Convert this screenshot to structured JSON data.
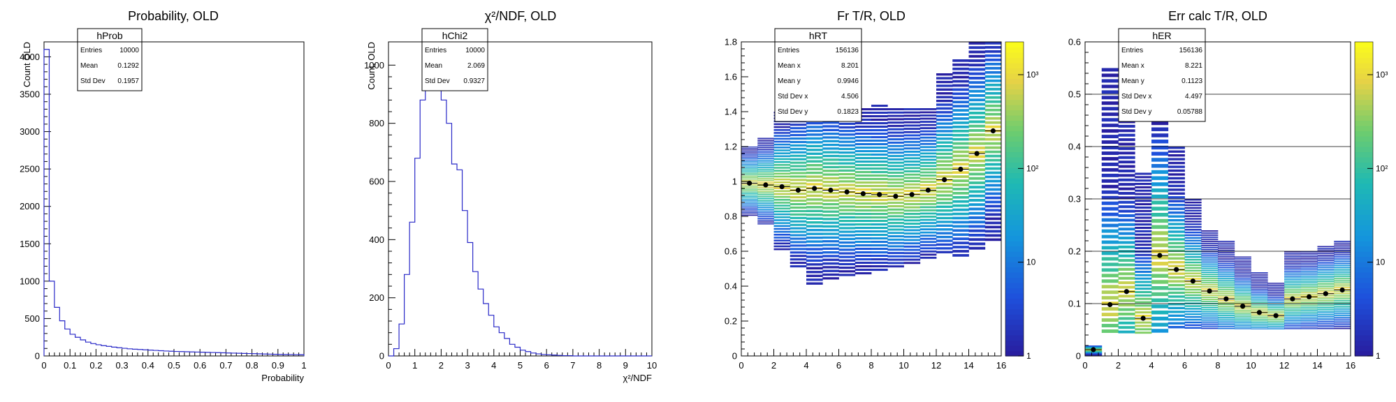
{
  "colors": {
    "hist_line": "#2828c8",
    "axis": "#000000",
    "marker": "#000000"
  },
  "chart_data": [
    {
      "type": "histogram",
      "title": "Probability, OLD",
      "xlabel": "Probability",
      "ylabel": "Count OLD",
      "xlim": [
        0,
        1
      ],
      "ylim": [
        0,
        4200
      ],
      "xticks": [
        "0",
        "0.1",
        "0.2",
        "0.3",
        "0.4",
        "0.5",
        "0.6",
        "0.7",
        "0.8",
        "0.9",
        "1"
      ],
      "yticks": [
        "0",
        "500",
        "1000",
        "1500",
        "2000",
        "2500",
        "3000",
        "3500",
        "4000"
      ],
      "bin_width": 0.02,
      "values": [
        4100,
        1000,
        650,
        470,
        360,
        290,
        250,
        215,
        185,
        165,
        150,
        138,
        128,
        118,
        110,
        102,
        95,
        90,
        86,
        82,
        78,
        74,
        70,
        66,
        63,
        60,
        58,
        56,
        54,
        52,
        50,
        48,
        46,
        44,
        42,
        40,
        38,
        36,
        34,
        32,
        30,
        28,
        26,
        24,
        22,
        20,
        19,
        18,
        17,
        16
      ],
      "stats": {
        "name": "hProb",
        "rows": [
          {
            "label": "Entries",
            "value": "10000"
          },
          {
            "label": "Mean",
            "value": "0.1292"
          },
          {
            "label": "Std Dev",
            "value": "0.1957"
          }
        ]
      }
    },
    {
      "type": "histogram",
      "title": "χ²/NDF, OLD",
      "xlabel": "χ²/NDF",
      "ylabel": "Count, OLD",
      "xlim": [
        0,
        10
      ],
      "ylim": [
        0,
        1080
      ],
      "xticks": [
        "0",
        "1",
        "2",
        "3",
        "4",
        "5",
        "6",
        "7",
        "8",
        "9",
        "10"
      ],
      "yticks": [
        "0",
        "200",
        "400",
        "600",
        "800",
        "1000"
      ],
      "bin_width": 0.2,
      "values": [
        0,
        25,
        110,
        280,
        460,
        680,
        880,
        950,
        1060,
        1010,
        880,
        800,
        660,
        640,
        500,
        390,
        290,
        230,
        180,
        140,
        100,
        80,
        60,
        40,
        30,
        20,
        15,
        10,
        7,
        5,
        4,
        3,
        2,
        1,
        1,
        0,
        0,
        0,
        0,
        0,
        0,
        0,
        0,
        0,
        0,
        0,
        0,
        0,
        0,
        0
      ],
      "stats": {
        "name": "hChi2",
        "rows": [
          {
            "label": "Entries",
            "value": "10000"
          },
          {
            "label": "Mean",
            "value": "2.069"
          },
          {
            "label": "Std Dev",
            "value": "0.9327"
          }
        ]
      }
    },
    {
      "type": "heatmap",
      "title": "Fr  T/R, OLD",
      "xlim": [
        0,
        16
      ],
      "ylim": [
        0,
        1.8
      ],
      "xticks": [
        "0",
        "2",
        "4",
        "6",
        "8",
        "10",
        "12",
        "14",
        "16"
      ],
      "yticks": [
        "0",
        "0.2",
        "0.4",
        "0.6",
        "0.8",
        "1",
        "1.2",
        "1.4",
        "1.6",
        "1.8"
      ],
      "z_scale": "log",
      "z_ticks": [
        "1",
        "10",
        "10²",
        "10³"
      ],
      "profile": {
        "x": [
          0.5,
          1.5,
          2.5,
          3.5,
          4.5,
          5.5,
          6.5,
          7.5,
          8.5,
          9.5,
          10.5,
          11.5,
          12.5,
          13.5,
          14.5,
          15.5
        ],
        "y": [
          0.99,
          0.98,
          0.97,
          0.95,
          0.96,
          0.95,
          0.94,
          0.93,
          0.925,
          0.915,
          0.925,
          0.95,
          1.01,
          1.07,
          1.16,
          1.29
        ]
      },
      "columns": [
        {
          "x0": 0,
          "x1": 1,
          "y0": 0.8,
          "y1": 1.2,
          "peak": 400
        },
        {
          "x0": 1,
          "x1": 2,
          "y0": 0.75,
          "y1": 1.25,
          "peak": 350
        },
        {
          "x0": 2,
          "x1": 3,
          "y0": 0.6,
          "y1": 1.4,
          "peak": 300
        },
        {
          "x0": 3,
          "x1": 4,
          "y0": 0.5,
          "y1": 1.45,
          "peak": 280
        },
        {
          "x0": 4,
          "x1": 5,
          "y0": 0.4,
          "y1": 1.45,
          "peak": 260
        },
        {
          "x0": 5,
          "x1": 6,
          "y0": 0.43,
          "y1": 1.45,
          "peak": 260
        },
        {
          "x0": 6,
          "x1": 7,
          "y0": 0.45,
          "y1": 1.44,
          "peak": 250
        },
        {
          "x0": 7,
          "x1": 8,
          "y0": 0.46,
          "y1": 1.42,
          "peak": 240
        },
        {
          "x0": 8,
          "x1": 9,
          "y0": 0.48,
          "y1": 1.44,
          "peak": 230
        },
        {
          "x0": 9,
          "x1": 10,
          "y0": 0.5,
          "y1": 1.42,
          "peak": 220
        },
        {
          "x0": 10,
          "x1": 11,
          "y0": 0.52,
          "y1": 1.42,
          "peak": 220
        },
        {
          "x0": 11,
          "x1": 12,
          "y0": 0.55,
          "y1": 1.42,
          "peak": 220
        },
        {
          "x0": 12,
          "x1": 13,
          "y0": 0.58,
          "y1": 1.62,
          "peak": 200
        },
        {
          "x0": 13,
          "x1": 14,
          "y0": 0.56,
          "y1": 1.7,
          "peak": 180
        },
        {
          "x0": 14,
          "x1": 15,
          "y0": 0.6,
          "y1": 1.8,
          "peak": 170
        },
        {
          "x0": 15,
          "x1": 16,
          "y0": 0.65,
          "y1": 1.8,
          "peak": 160
        }
      ],
      "stats": {
        "name": "hRT",
        "rows": [
          {
            "label": "Entries",
            "value": "156136"
          },
          {
            "label": "Mean x",
            "value": "8.201"
          },
          {
            "label": "Mean y",
            "value": "0.9946"
          },
          {
            "label": "Std Dev x",
            "value": "4.506"
          },
          {
            "label": "Std Dev y",
            "value": "0.1823"
          }
        ]
      }
    },
    {
      "type": "heatmap",
      "title": "Err calc  T/R, OLD",
      "xlim": [
        0,
        16
      ],
      "ylim": [
        0,
        0.6
      ],
      "xticks": [
        "0",
        "2",
        "4",
        "6",
        "8",
        "10",
        "12",
        "14",
        "16"
      ],
      "yticks": [
        "0",
        "0.1",
        "0.2",
        "0.3",
        "0.4",
        "0.5",
        "0.6"
      ],
      "z_scale": "log",
      "z_ticks": [
        "1",
        "10",
        "10²",
        "10³"
      ],
      "profile": {
        "x": [
          0.5,
          1.5,
          2.5,
          3.5,
          4.5,
          5.5,
          6.5,
          7.5,
          8.5,
          9.5,
          10.5,
          11.5,
          12.5,
          13.5,
          14.5,
          15.5
        ],
        "y": [
          0.012,
          0.098,
          0.123,
          0.072,
          0.192,
          0.165,
          0.143,
          0.124,
          0.109,
          0.095,
          0.083,
          0.077,
          0.109,
          0.113,
          0.119,
          0.126
        ]
      },
      "columns": [
        {
          "x0": 0,
          "x1": 1,
          "y0": 0.0,
          "y1": 0.02,
          "peak": 30
        },
        {
          "x0": 1,
          "x1": 2,
          "y0": 0.04,
          "y1": 0.55,
          "peak": 200
        },
        {
          "x0": 2,
          "x1": 3,
          "y0": 0.04,
          "y1": 0.45,
          "peak": 250
        },
        {
          "x0": 3,
          "x1": 4,
          "y0": 0.04,
          "y1": 0.35,
          "peak": 300
        },
        {
          "x0": 4,
          "x1": 5,
          "y0": 0.04,
          "y1": 0.6,
          "peak": 260
        },
        {
          "x0": 5,
          "x1": 6,
          "y0": 0.05,
          "y1": 0.4,
          "peak": 260
        },
        {
          "x0": 6,
          "x1": 7,
          "y0": 0.05,
          "y1": 0.3,
          "peak": 280
        },
        {
          "x0": 7,
          "x1": 8,
          "y0": 0.05,
          "y1": 0.24,
          "peak": 300
        },
        {
          "x0": 8,
          "x1": 9,
          "y0": 0.05,
          "y1": 0.22,
          "peak": 320
        },
        {
          "x0": 9,
          "x1": 10,
          "y0": 0.05,
          "y1": 0.19,
          "peak": 340
        },
        {
          "x0": 10,
          "x1": 11,
          "y0": 0.05,
          "y1": 0.16,
          "peak": 360
        },
        {
          "x0": 11,
          "x1": 12,
          "y0": 0.05,
          "y1": 0.14,
          "peak": 380
        },
        {
          "x0": 12,
          "x1": 13,
          "y0": 0.05,
          "y1": 0.2,
          "peak": 300
        },
        {
          "x0": 13,
          "x1": 14,
          "y0": 0.05,
          "y1": 0.2,
          "peak": 290
        },
        {
          "x0": 14,
          "x1": 15,
          "y0": 0.05,
          "y1": 0.21,
          "peak": 280
        },
        {
          "x0": 15,
          "x1": 16,
          "y0": 0.05,
          "y1": 0.22,
          "peak": 270
        }
      ],
      "stats": {
        "name": "hER",
        "rows": [
          {
            "label": "Entries",
            "value": "156136"
          },
          {
            "label": "Mean x",
            "value": "8.221"
          },
          {
            "label": "Mean y",
            "value": "0.1123"
          },
          {
            "label": "Std Dev x",
            "value": "4.497"
          },
          {
            "label": "Std Dev y",
            "value": "0.05788"
          }
        ]
      }
    }
  ]
}
